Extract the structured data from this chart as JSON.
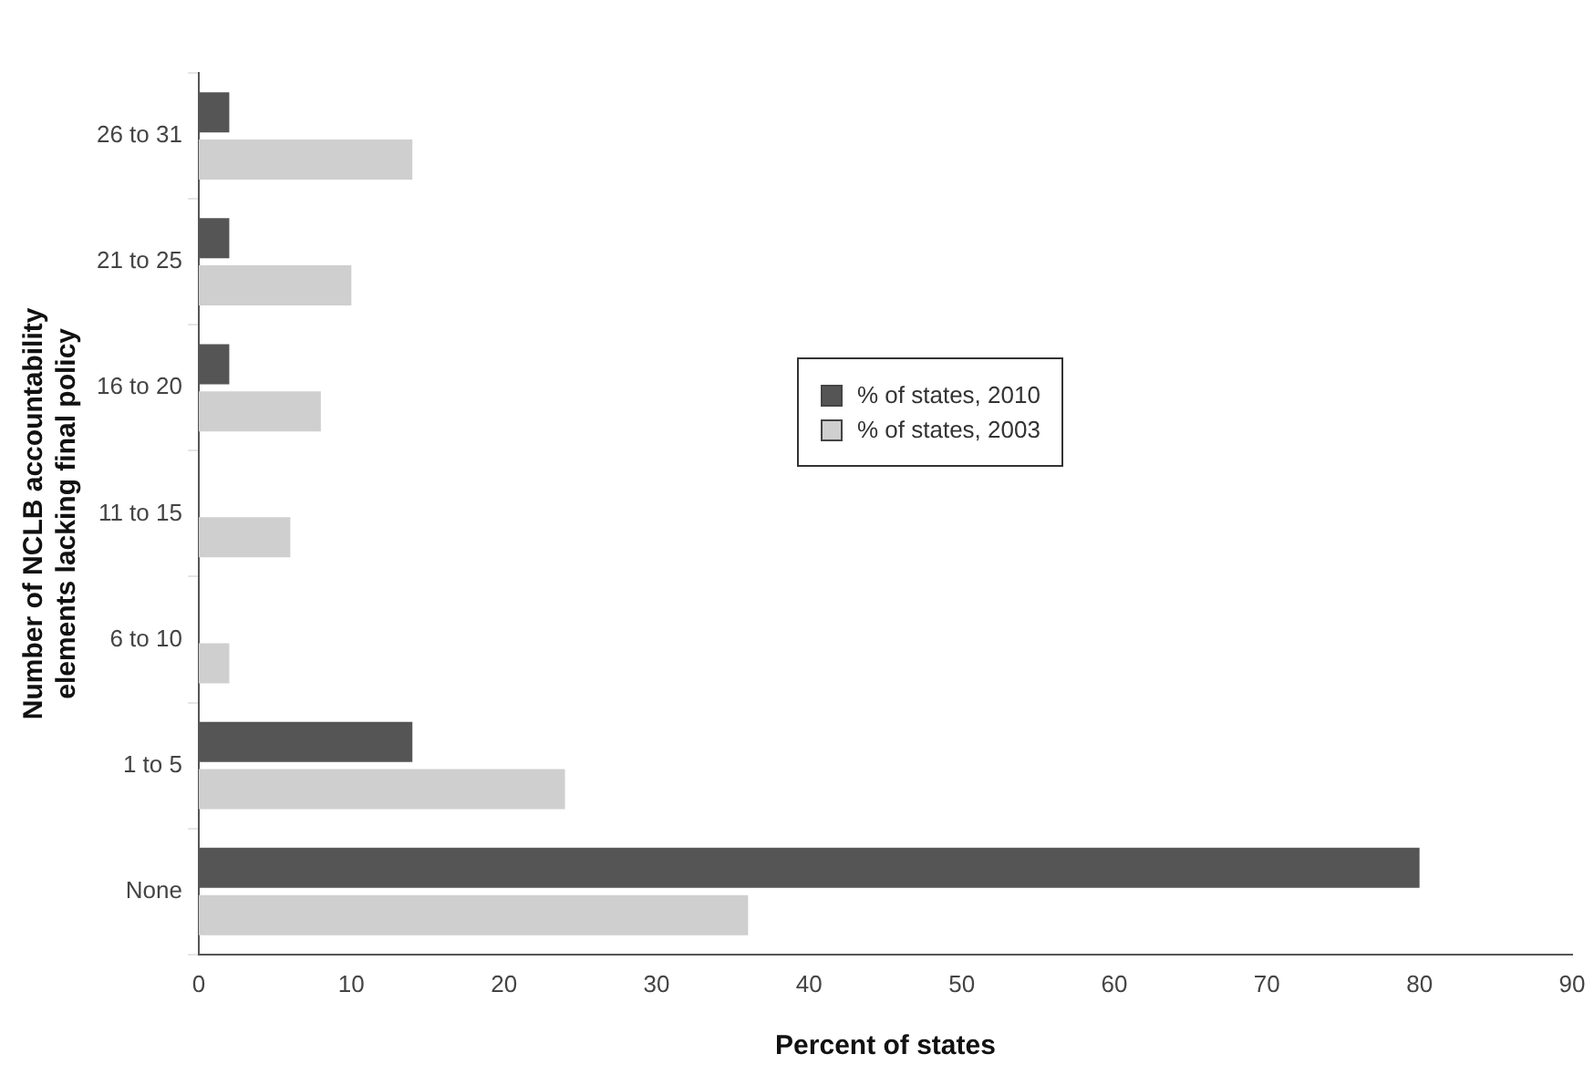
{
  "chart_data": {
    "type": "bar",
    "orientation": "horizontal",
    "xlabel": "Percent of states",
    "ylabel": "Number of NCLB accountability elements lacking final policy",
    "categories": [
      "26 to 31",
      "21 to 25",
      "16 to 20",
      "11 to 15",
      "6 to 10",
      "1 to 5",
      "None"
    ],
    "series": [
      {
        "name": "% of states, 2010",
        "color": "#555555",
        "values": [
          2,
          2,
          2,
          0,
          0,
          14,
          80
        ]
      },
      {
        "name": "% of states, 2003",
        "color": "#cfcfcf",
        "values": [
          14,
          10,
          8,
          6,
          2,
          24,
          36
        ]
      }
    ],
    "xlim": [
      0,
      90
    ],
    "xticks": [
      0,
      10,
      20,
      30,
      40,
      50,
      60,
      70,
      80,
      90
    ],
    "grid": false,
    "legend": "right"
  }
}
